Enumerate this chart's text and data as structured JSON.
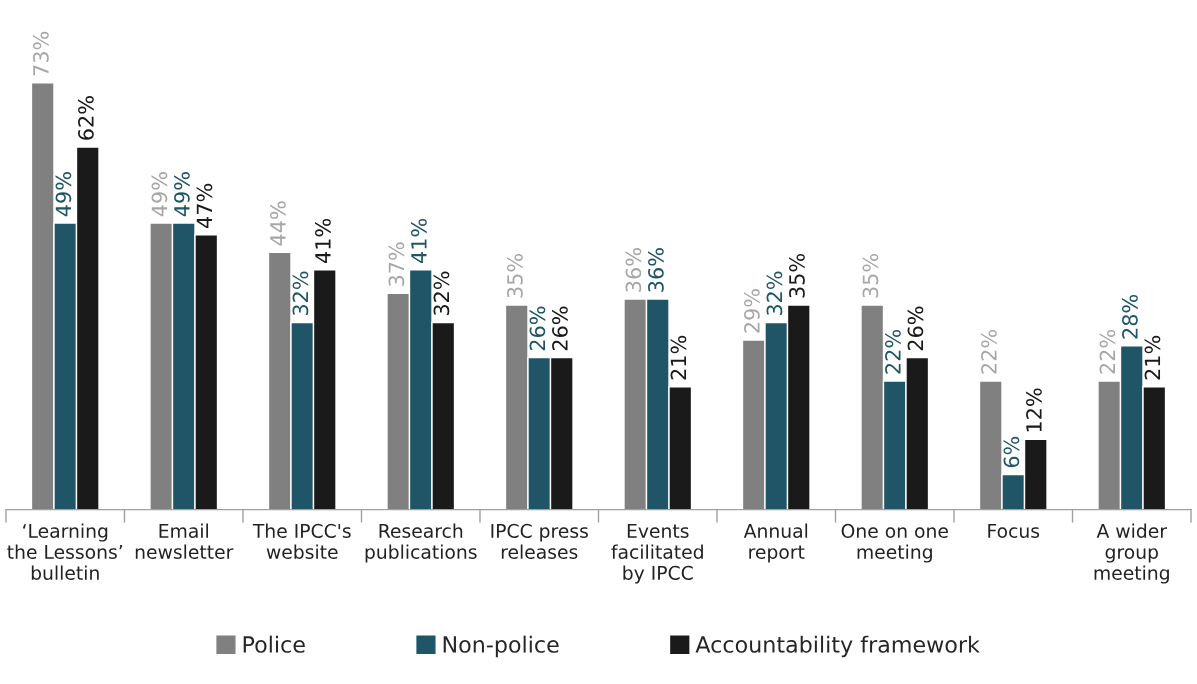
{
  "chart_data": {
    "type": "bar",
    "categories": [
      "‘Learning\nthe Lessons’\nbulletin",
      "Email\nnewsletter",
      "The IPCC's\nwebsite",
      "Research\npublications",
      "IPCC press\nreleases",
      "Events\nfacilitated\nby IPCC",
      "Annual\nreport",
      "One on one\nmeeting",
      "Focus",
      "A wider\ngroup\nmeeting"
    ],
    "series": [
      {
        "name": "Police",
        "color": "#808080",
        "values": [
          73,
          49,
          44,
          37,
          35,
          36,
          29,
          35,
          22,
          22
        ],
        "value_labels": [
          "73%",
          "49%",
          "44%",
          "37%",
          "35%",
          "36%",
          "29%",
          "35%",
          "22%",
          "22%"
        ]
      },
      {
        "name": "Non-police",
        "color": "#1f5566",
        "values": [
          49,
          49,
          32,
          41,
          26,
          36,
          32,
          22,
          6,
          28
        ],
        "value_labels": [
          "49%",
          "49%",
          "32%",
          "41%",
          "26%",
          "36%",
          "32%",
          "22%",
          "6%",
          "28%"
        ]
      },
      {
        "name": "Accountability framework",
        "color": "#1a1a1a",
        "values": [
          62,
          47,
          41,
          32,
          26,
          21,
          35,
          26,
          12,
          21
        ],
        "value_labels": [
          "62%",
          "47%",
          "41%",
          "32%",
          "26%",
          "21%",
          "35%",
          "26%",
          "12%",
          "21%"
        ]
      }
    ],
    "grid": false,
    "legend": "bottom"
  }
}
